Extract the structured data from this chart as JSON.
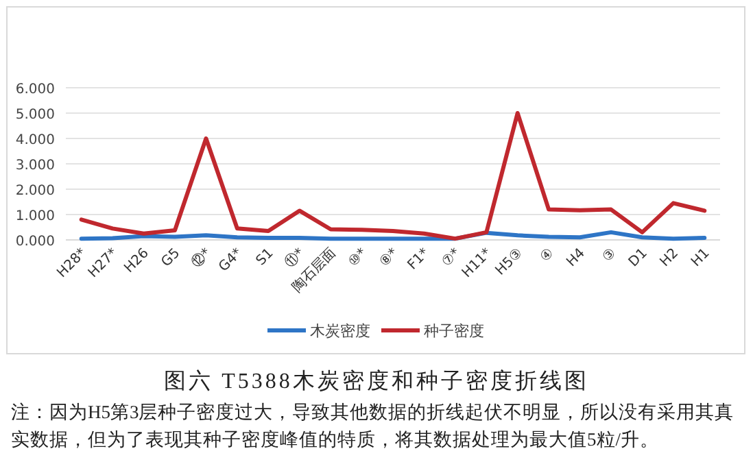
{
  "chart_data": {
    "type": "line",
    "title": "图六  T5388木炭密度和种子密度折线图",
    "categories": [
      "H28*",
      "H27*",
      "H26",
      "G5",
      "⑫*",
      "G4*",
      "S1",
      "⑪*",
      "陶石层面",
      "⑩*",
      "⑧*",
      "F1*",
      "⑦*",
      "H11*",
      "H5③",
      "④",
      "H4",
      "③",
      "D1",
      "H2",
      "H1"
    ],
    "series": [
      {
        "name": "木炭密度",
        "color": "#2e75c6",
        "values": [
          0.05,
          0.07,
          0.15,
          0.12,
          0.18,
          0.1,
          0.08,
          0.08,
          0.05,
          0.05,
          0.05,
          0.05,
          0.05,
          0.28,
          0.18,
          0.12,
          0.1,
          0.3,
          0.1,
          0.05,
          0.08
        ]
      },
      {
        "name": "种子密度",
        "color": "#c0282e",
        "values": [
          0.8,
          0.45,
          0.25,
          0.38,
          4.0,
          0.45,
          0.35,
          1.15,
          0.42,
          0.4,
          0.35,
          0.25,
          0.05,
          0.3,
          5.0,
          1.2,
          1.17,
          1.2,
          0.3,
          1.45,
          1.15
        ]
      }
    ],
    "ylim": [
      0,
      6
    ],
    "yticks": [
      {
        "value": 0,
        "label": "0.000"
      },
      {
        "value": 1,
        "label": "1.000"
      },
      {
        "value": 2,
        "label": "2.000"
      },
      {
        "value": 3,
        "label": "3.000"
      },
      {
        "value": 4,
        "label": "4.000"
      },
      {
        "value": 5,
        "label": "5.000"
      },
      {
        "value": 6,
        "label": "6.000"
      }
    ],
    "grid": "y",
    "legend": "bottom",
    "marker": "none",
    "line_style": "solid",
    "annotations": [
      "注：因为H5第3层种子密度过大，导致其他数据的折线起伏不明显，所以没有采用其真实数据，但为了表现其种子密度峰值的特质，将其数据处理为最大值5粒/升。"
    ]
  }
}
